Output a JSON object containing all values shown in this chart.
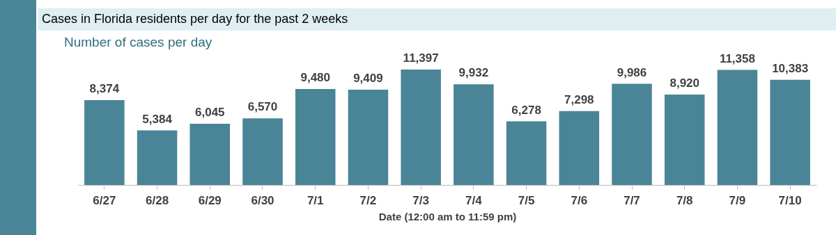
{
  "chart_data": {
    "type": "bar",
    "title": "Cases in Florida residents per day for the past 2 weeks",
    "subtitle": "Number of cases per day",
    "xlabel": "Date (12:00 am to 11:59 pm)",
    "categories": [
      "6/27",
      "6/28",
      "6/29",
      "6/30",
      "7/1",
      "7/2",
      "7/3",
      "7/4",
      "7/5",
      "7/6",
      "7/7",
      "7/8",
      "7/9",
      "7/10"
    ],
    "values": [
      8374,
      5384,
      6045,
      6570,
      9480,
      9409,
      11397,
      9932,
      6278,
      7298,
      9986,
      8920,
      11358,
      10383
    ],
    "value_labels": [
      "8,374",
      "5,384",
      "6,045",
      "6,570",
      "9,480",
      "9,409",
      "11,397",
      "9,932",
      "6,278",
      "7,298",
      "9,986",
      "8,920",
      "11,358",
      "10,383"
    ],
    "color": "#4a8597"
  }
}
